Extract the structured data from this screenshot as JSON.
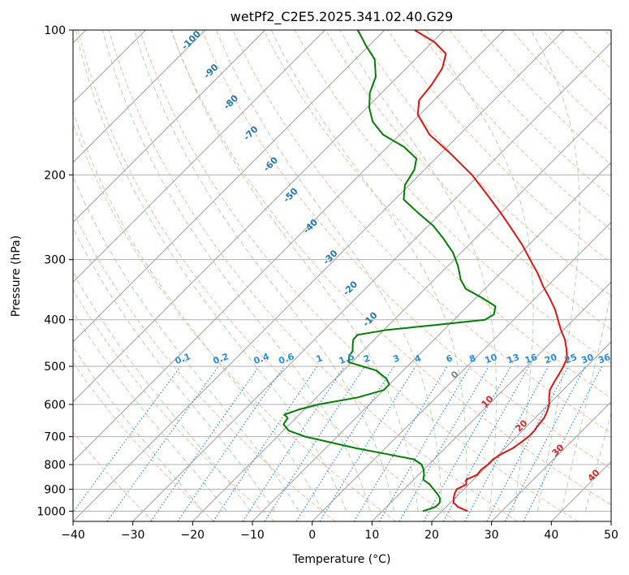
{
  "chart_data": {
    "type": "line",
    "title": "wetPf2_C2E5.2025.341.02.40.G29",
    "xlabel": "Temperature (°C)",
    "ylabel": "Pressure (hPa)",
    "xlim": [
      -40,
      50
    ],
    "ylim": [
      1050,
      100
    ],
    "y_scale": "log",
    "x_ticks": [
      -40,
      -30,
      -20,
      -10,
      0,
      10,
      20,
      30,
      40,
      50
    ],
    "y_ticks": [
      1000,
      900,
      800,
      700,
      600,
      500,
      400,
      300,
      200,
      100
    ],
    "grid": true,
    "skew_note": "isotherms skewed 45°",
    "series": [
      {
        "color": "#e3140f",
        "points": [
          {
            "p": 1000,
            "t": 24.3
          },
          {
            "p": 980,
            "t": 22.0
          },
          {
            "p": 960,
            "t": 20.5
          },
          {
            "p": 940,
            "t": 19.8
          },
          {
            "p": 920,
            "t": 19.2
          },
          {
            "p": 900,
            "t": 18.8
          },
          {
            "p": 880,
            "t": 19.6
          },
          {
            "p": 860,
            "t": 18.8
          },
          {
            "p": 840,
            "t": 19.8
          },
          {
            "p": 820,
            "t": 19.6
          },
          {
            "p": 800,
            "t": 19.9
          },
          {
            "p": 780,
            "t": 19.9
          },
          {
            "p": 760,
            "t": 20.4
          },
          {
            "p": 740,
            "t": 21.3
          },
          {
            "p": 720,
            "t": 21.7
          },
          {
            "p": 700,
            "t": 22.0
          },
          {
            "p": 680,
            "t": 22.0
          },
          {
            "p": 660,
            "t": 21.7
          },
          {
            "p": 640,
            "t": 21.5
          },
          {
            "p": 620,
            "t": 20.9
          },
          {
            "p": 600,
            "t": 20.1
          },
          {
            "p": 580,
            "t": 18.9
          },
          {
            "p": 560,
            "t": 17.8
          },
          {
            "p": 540,
            "t": 17.2
          },
          {
            "p": 520,
            "t": 16.7
          },
          {
            "p": 500,
            "t": 16.1
          },
          {
            "p": 480,
            "t": 15.3
          },
          {
            "p": 460,
            "t": 13.7
          },
          {
            "p": 440,
            "t": 11.9
          },
          {
            "p": 420,
            "t": 9.6
          },
          {
            "p": 400,
            "t": 7.4
          },
          {
            "p": 380,
            "t": 5.1
          },
          {
            "p": 360,
            "t": 2.3
          },
          {
            "p": 340,
            "t": -0.8
          },
          {
            "p": 320,
            "t": -3.8
          },
          {
            "p": 300,
            "t": -7.3
          },
          {
            "p": 280,
            "t": -11.0
          },
          {
            "p": 260,
            "t": -15.3
          },
          {
            "p": 240,
            "t": -20.0
          },
          {
            "p": 220,
            "t": -25.3
          },
          {
            "p": 200,
            "t": -31.2
          },
          {
            "p": 180,
            "t": -38.6
          },
          {
            "p": 165,
            "t": -45.0
          },
          {
            "p": 150,
            "t": -50.3
          },
          {
            "p": 140,
            "t": -52.5
          },
          {
            "p": 130,
            "t": -53.0
          },
          {
            "p": 120,
            "t": -54.0
          },
          {
            "p": 112,
            "t": -55.8
          },
          {
            "p": 106,
            "t": -59.6
          },
          {
            "p": 100,
            "t": -65.0
          }
        ]
      },
      {
        "color": "#008000",
        "points": [
          {
            "p": 1000,
            "t": 16.8
          },
          {
            "p": 980,
            "t": 18.2
          },
          {
            "p": 960,
            "t": 18.2
          },
          {
            "p": 940,
            "t": 17.5
          },
          {
            "p": 920,
            "t": 16.3
          },
          {
            "p": 900,
            "t": 14.9
          },
          {
            "p": 880,
            "t": 13.5
          },
          {
            "p": 860,
            "t": 11.6
          },
          {
            "p": 840,
            "t": 10.9
          },
          {
            "p": 820,
            "t": 10.0
          },
          {
            "p": 800,
            "t": 8.8
          },
          {
            "p": 780,
            "t": 6.6
          },
          {
            "p": 760,
            "t": 1.0
          },
          {
            "p": 740,
            "t": -4.8
          },
          {
            "p": 720,
            "t": -10.0
          },
          {
            "p": 700,
            "t": -15.3
          },
          {
            "p": 680,
            "t": -19.1
          },
          {
            "p": 660,
            "t": -21.0
          },
          {
            "p": 640,
            "t": -21.4
          },
          {
            "p": 630,
            "t": -22.5
          },
          {
            "p": 615,
            "t": -21.0
          },
          {
            "p": 600,
            "t": -18.5
          },
          {
            "p": 580,
            "t": -13.1
          },
          {
            "p": 560,
            "t": -10.0
          },
          {
            "p": 545,
            "t": -10.0
          },
          {
            "p": 530,
            "t": -11.5
          },
          {
            "p": 510,
            "t": -14.5
          },
          {
            "p": 490,
            "t": -20.5
          },
          {
            "p": 475,
            "t": -21.5
          },
          {
            "p": 465,
            "t": -21.7
          },
          {
            "p": 450,
            "t": -22.8
          },
          {
            "p": 440,
            "t": -23.5
          },
          {
            "p": 430,
            "t": -23.6
          },
          {
            "p": 420,
            "t": -19.5
          },
          {
            "p": 410,
            "t": -12.0
          },
          {
            "p": 400,
            "t": -4.8
          },
          {
            "p": 390,
            "t": -4.2
          },
          {
            "p": 375,
            "t": -5.3
          },
          {
            "p": 360,
            "t": -9.0
          },
          {
            "p": 345,
            "t": -13.2
          },
          {
            "p": 330,
            "t": -15.6
          },
          {
            "p": 310,
            "t": -18.2
          },
          {
            "p": 290,
            "t": -21.4
          },
          {
            "p": 270,
            "t": -25.6
          },
          {
            "p": 255,
            "t": -29.2
          },
          {
            "p": 240,
            "t": -33.8
          },
          {
            "p": 225,
            "t": -38.5
          },
          {
            "p": 210,
            "t": -40.7
          },
          {
            "p": 195,
            "t": -41.7
          },
          {
            "p": 185,
            "t": -43.2
          },
          {
            "p": 175,
            "t": -47.2
          },
          {
            "p": 165,
            "t": -52.8
          },
          {
            "p": 155,
            "t": -56.7
          },
          {
            "p": 145,
            "t": -59.6
          },
          {
            "p": 135,
            "t": -62.0
          },
          {
            "p": 125,
            "t": -63.7
          },
          {
            "p": 115,
            "t": -66.8
          },
          {
            "p": 108,
            "t": -70.4
          },
          {
            "p": 100,
            "t": -74.5
          }
        ]
      }
    ],
    "isotherm_labels": [
      {
        "t": -100,
        "text": "-100"
      },
      {
        "t": -90,
        "text": "-90"
      },
      {
        "t": -80,
        "text": "-80"
      },
      {
        "t": -70,
        "text": "-70"
      },
      {
        "t": -60,
        "text": "-60"
      },
      {
        "t": -50,
        "text": "-50"
      },
      {
        "t": -40,
        "text": "-40"
      },
      {
        "t": -30,
        "text": "-30"
      },
      {
        "t": -20,
        "text": "-20"
      },
      {
        "t": -10,
        "text": "-10"
      }
    ],
    "warm_labels": [
      {
        "t": 0,
        "text": "0"
      },
      {
        "t": 10,
        "text": "10"
      },
      {
        "t": 20,
        "text": "20"
      },
      {
        "t": 30,
        "text": "30"
      },
      {
        "t": 40,
        "text": "40"
      }
    ],
    "mixing_ratio_labels": [
      "0.1",
      "0.2",
      "0.4",
      "0.6",
      "1",
      "1.5",
      "2",
      "3",
      "4",
      "6",
      "8",
      "10",
      "13",
      "16",
      "20",
      "25",
      "30",
      "36"
    ],
    "colors": {
      "temperature": "#e3140f",
      "dewpoint": "#008000",
      "isotherm": "#a0a0a0",
      "dry_adiabat": "#f4a582",
      "moist_adiabat": "#9fd49f",
      "mixing_ratio": "#2b8ce0",
      "cold_label": "#1f77b4",
      "warm_label": "#d62728",
      "zero_label": "#808080"
    }
  }
}
